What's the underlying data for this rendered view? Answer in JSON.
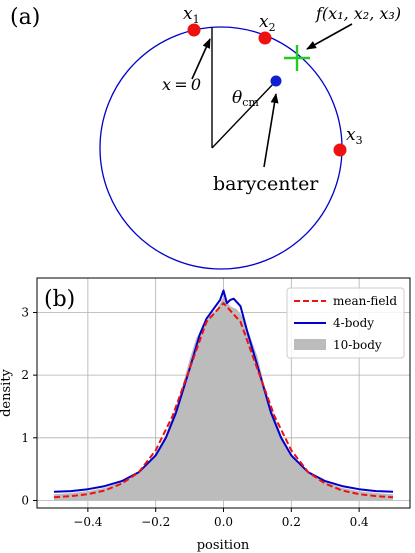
{
  "panel_a": {
    "label": "(a)",
    "labels": {
      "x1": "x",
      "x1_sub": "1",
      "x2": "x",
      "x2_sub": "2",
      "x3": "x",
      "x3_sub": "3",
      "x0": "x = 0",
      "theta": "θ",
      "theta_sub": "cm",
      "f": "f(x₁, x₂, x₃)",
      "barycenter": "barycenter"
    },
    "colors": {
      "circle": "#0000cc",
      "particle": "#ee1111",
      "barycenter_point": "#1020d0",
      "cross": "#22cc22"
    }
  },
  "chart_data": {
    "type": "line",
    "panel_label": "(b)",
    "xlabel": "position",
    "ylabel": "density",
    "xlim": [
      -0.55,
      0.55
    ],
    "ylim": [
      -0.12,
      3.55
    ],
    "xticks": [
      -0.4,
      -0.2,
      0.0,
      0.2,
      0.4
    ],
    "xtick_labels": [
      "−0.4",
      "−0.2",
      "0.0",
      "0.2",
      "0.4"
    ],
    "yticks": [
      0,
      1,
      2,
      3
    ],
    "ytick_labels": [
      "0",
      "1",
      "2",
      "3"
    ],
    "grid": true,
    "legend_position": "top-right",
    "series": [
      {
        "name": "mean-field",
        "style": "dashed",
        "color": "#ee1111",
        "x": [
          -0.5,
          -0.45,
          -0.4,
          -0.35,
          -0.3,
          -0.25,
          -0.2,
          -0.15,
          -0.1,
          -0.05,
          0.0,
          0.05,
          0.1,
          0.15,
          0.2,
          0.25,
          0.3,
          0.35,
          0.4,
          0.45,
          0.5
        ],
        "y": [
          0.05,
          0.07,
          0.1,
          0.16,
          0.27,
          0.45,
          0.8,
          1.35,
          2.1,
          2.85,
          3.15,
          2.85,
          2.1,
          1.35,
          0.8,
          0.45,
          0.27,
          0.16,
          0.1,
          0.07,
          0.05
        ]
      },
      {
        "name": "4-body",
        "style": "solid",
        "color": "#0000cc",
        "x": [
          -0.5,
          -0.45,
          -0.4,
          -0.35,
          -0.3,
          -0.25,
          -0.2,
          -0.17,
          -0.14,
          -0.1,
          -0.07,
          -0.05,
          -0.03,
          -0.01,
          0.0,
          0.01,
          0.02,
          0.03,
          0.05,
          0.07,
          0.1,
          0.14,
          0.17,
          0.2,
          0.25,
          0.3,
          0.35,
          0.4,
          0.45,
          0.5
        ],
        "y": [
          0.14,
          0.15,
          0.18,
          0.23,
          0.31,
          0.45,
          0.72,
          1.0,
          1.4,
          2.1,
          2.65,
          2.9,
          3.05,
          3.2,
          3.35,
          3.15,
          3.2,
          3.22,
          3.1,
          2.7,
          2.15,
          1.4,
          1.0,
          0.72,
          0.45,
          0.31,
          0.23,
          0.18,
          0.15,
          0.14
        ]
      },
      {
        "name": "10-body",
        "style": "filled",
        "color": "#bcbcbc",
        "x": [
          -0.5,
          -0.45,
          -0.4,
          -0.35,
          -0.3,
          -0.25,
          -0.2,
          -0.17,
          -0.14,
          -0.12,
          -0.1,
          -0.08,
          -0.06,
          -0.04,
          -0.02,
          0.0,
          0.02,
          0.04,
          0.06,
          0.08,
          0.1,
          0.12,
          0.14,
          0.17,
          0.2,
          0.25,
          0.3,
          0.35,
          0.4,
          0.45,
          0.5
        ],
        "y": [
          0.1,
          0.12,
          0.15,
          0.2,
          0.3,
          0.45,
          0.75,
          1.05,
          1.5,
          1.85,
          2.25,
          2.6,
          2.75,
          2.95,
          3.05,
          3.25,
          3.1,
          3.05,
          2.9,
          2.6,
          2.3,
          1.85,
          1.5,
          1.05,
          0.75,
          0.45,
          0.3,
          0.2,
          0.15,
          0.12,
          0.1
        ]
      }
    ]
  }
}
